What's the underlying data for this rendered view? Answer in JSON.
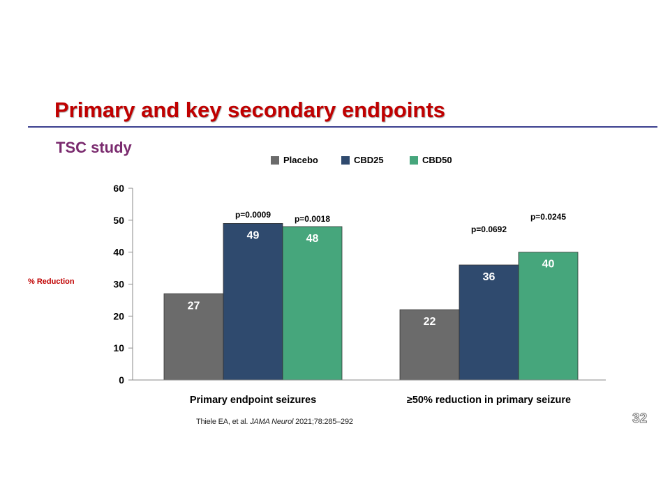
{
  "slide": {
    "title": "Primary and key secondary endpoints",
    "subtitle": "TSC study",
    "citation": {
      "prefix": "Thiele EA, et al. ",
      "journal": "JAMA Neurol",
      "suffix": " 2021;78:285–292"
    },
    "page_number": "32"
  },
  "colors": {
    "title": "#c00000",
    "rule": "#3b3f8f",
    "subtitle": "#7a2a6e"
  },
  "chart_data": {
    "type": "bar",
    "title": "",
    "xlabel": "",
    "ylabel": "% Reduction",
    "ylim": [
      0,
      60
    ],
    "yticks": [
      0,
      10,
      20,
      30,
      40,
      50,
      60
    ],
    "grid": false,
    "legend_position": "top",
    "categories": [
      "Primary endpoint seizures",
      "≥50% reduction in primary seizure"
    ],
    "series": [
      {
        "name": "Placebo",
        "color": "#6b6b6b",
        "values": [
          27,
          22
        ]
      },
      {
        "name": "CBD25",
        "color": "#2f4a6e",
        "values": [
          49,
          36
        ]
      },
      {
        "name": "CBD50",
        "color": "#46a67c",
        "values": [
          48,
          40
        ]
      }
    ],
    "annotations": [
      {
        "category": 0,
        "series": 1,
        "text": "p=0.0009"
      },
      {
        "category": 0,
        "series": 2,
        "text": "p=0.0018"
      },
      {
        "category": 1,
        "series": 1,
        "text": "p=0.0692"
      },
      {
        "category": 1,
        "series": 2,
        "text": "p=0.0245"
      }
    ]
  }
}
